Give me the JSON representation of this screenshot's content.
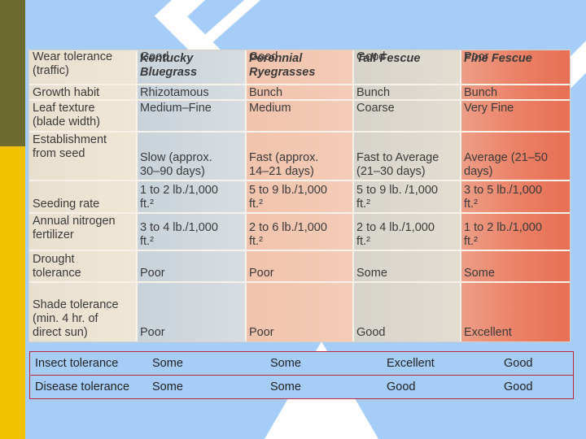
{
  "table": {
    "headers": [
      "",
      "Kentucky Bluegrass",
      "Perennial Ryegrasses",
      "Tall Fescue",
      "Fine Fescue"
    ],
    "header_lines": [
      [],
      [
        "Kentucky",
        "Bluegrass"
      ],
      [
        "Perennial",
        "Ryegrasses"
      ],
      [
        "Tall Fescue"
      ],
      [
        "Fine Fescue"
      ]
    ],
    "rows": [
      {
        "label": [
          "Growth habit"
        ],
        "values": [
          [
            "Rhizotamous"
          ],
          [
            "Bunch"
          ],
          [
            "Bunch"
          ],
          [
            "Bunch"
          ]
        ]
      },
      {
        "label": [
          "Leaf texture",
          "(blade width)"
        ],
        "values": [
          [
            "Medium–Fine"
          ],
          [
            "Medium"
          ],
          [
            "Coarse"
          ],
          [
            "Very Fine"
          ]
        ]
      },
      {
        "label": [
          "Establishment",
          "from seed"
        ],
        "values": [
          [
            "Slow (approx.",
            "30–90 days)"
          ],
          [
            "Fast (approx.",
            "14–21 days)"
          ],
          [
            "Fast to Average",
            "(21–30 days)"
          ],
          [
            "Average (21–50",
            "days)"
          ]
        ]
      },
      {
        "label": [
          "Seeding rate"
        ],
        "values": [
          [
            "1 to 2 lb./1,000",
            "ft.²"
          ],
          [
            "5 to 9 lb./1,000",
            "ft.²"
          ],
          [
            "5 to 9 lb. /1,000",
            "ft.²"
          ],
          [
            "3 to 5 lb./1,000",
            "ft.²"
          ]
        ]
      },
      {
        "label": [
          "Annual nitrogen",
          "fertilizer"
        ],
        "values": [
          [
            "3 to 4 lb./1,000",
            "ft.²"
          ],
          [
            "2 to 6 lb./1,000",
            "ft.²"
          ],
          [
            "2 to 4 lb./1,000",
            "ft.²"
          ],
          [
            "1 to 2 lb./1,000",
            "ft.²"
          ]
        ]
      },
      {
        "label": [
          "Drought",
          "tolerance"
        ],
        "values": [
          [
            "Poor"
          ],
          [
            "Poor"
          ],
          [
            "Some"
          ],
          [
            "Some"
          ]
        ]
      },
      {
        "label": [
          "Shade tolerance",
          "(min. 4 hr. of",
          "direct sun)"
        ],
        "values": [
          [
            "Poor"
          ],
          [
            "Poor"
          ],
          [
            "Good"
          ],
          [
            "Excellent"
          ]
        ]
      },
      {
        "label": [
          "Wear tolerance",
          "(traffic)"
        ],
        "values": [
          [
            "Good"
          ],
          [
            "Good"
          ],
          [
            "Good"
          ],
          [
            "Poor"
          ]
        ]
      }
    ]
  },
  "extra_rows": [
    {
      "label": "Insect tolerance",
      "values": [
        "Some",
        "Some",
        "Excellent",
        "Good"
      ]
    },
    {
      "label": "Disease tolerance",
      "values": [
        "Some",
        "Some",
        "Good",
        "Good"
      ]
    }
  ],
  "colors": {
    "background": "#a6cdf7",
    "diamond": "#1a5fc4",
    "olive": "#6b6b2f",
    "yellow": "#f2c200",
    "row_border": "#c0243a"
  }
}
